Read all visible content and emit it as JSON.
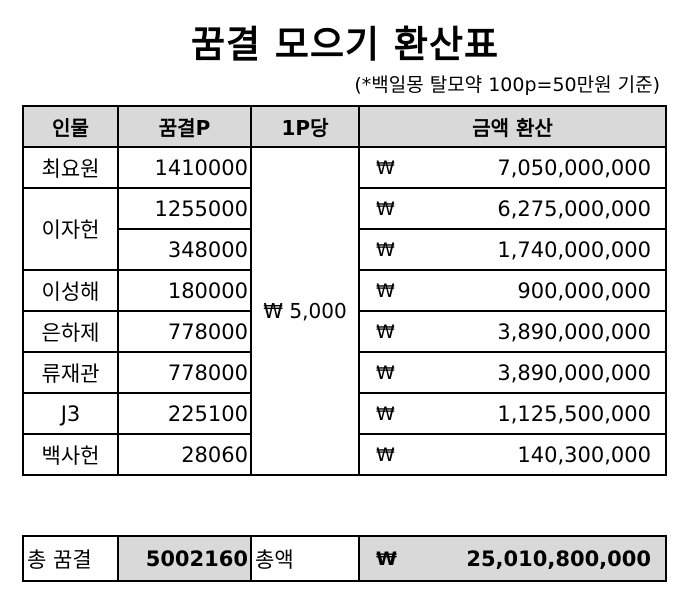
{
  "title": "꿈결 모으기 환산표",
  "subtitle": "(*백일몽 탈모약 100p=50만원 기준)",
  "headers": [
    "인물",
    "꿈결P",
    "1P당",
    "금액 환산"
  ],
  "rate": "₩ 5,000",
  "currency_symbol": "₩",
  "rows": [
    {
      "name": "최요원",
      "points": "1410000",
      "amount": "7,050,000,000"
    },
    {
      "name": "이자헌",
      "points": "1255000",
      "amount": "6,275,000,000"
    },
    {
      "name": "",
      "points": "348000",
      "amount": "1,740,000,000"
    },
    {
      "name": "이성해",
      "points": "180000",
      "amount": "900,000,000"
    },
    {
      "name": "은하제",
      "points": "778000",
      "amount": "3,890,000,000"
    },
    {
      "name": "류재관",
      "points": "778000",
      "amount": "3,890,000,000"
    },
    {
      "name": "J3",
      "points": "225100",
      "amount": "1,125,500,000"
    },
    {
      "name": "백사헌",
      "points": "28060",
      "amount": "140,300,000"
    }
  ],
  "total": {
    "points_label": "총 꿈결",
    "points_value": "5002160",
    "amount_label": "총액",
    "amount_value": "25,010,800,000"
  }
}
